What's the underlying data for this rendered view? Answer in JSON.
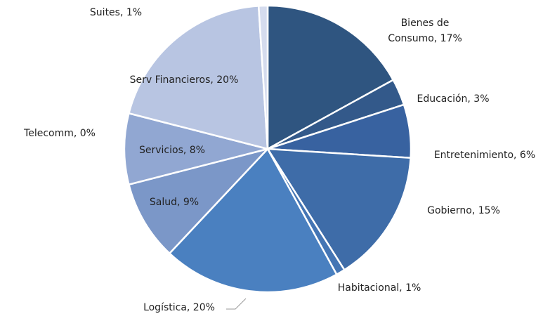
{
  "chart_data": {
    "type": "pie",
    "labels": [
      "Bienes de Consumo, 17%",
      "Educación, 3%",
      "Entretenimiento, 6%",
      "Gobierno, 15%",
      "Habitacional, 1%",
      "Logística, 20%",
      "Salud, 9%",
      "Servicios, 8%",
      "Telecomm, 0%",
      "Serv Financieros, 20%",
      "Suites, 1%"
    ],
    "values": [
      17,
      3,
      6,
      15,
      1,
      20,
      9,
      8,
      0,
      20,
      1
    ],
    "colors": [
      "#2f5580",
      "#33598a",
      "#3862a0",
      "#3e6ca8",
      "#4475b4",
      "#4a80c0",
      "#7b97c8",
      "#91a7d2",
      "#a5b6da",
      "#b8c5e2",
      "#d5dcee"
    ]
  }
}
